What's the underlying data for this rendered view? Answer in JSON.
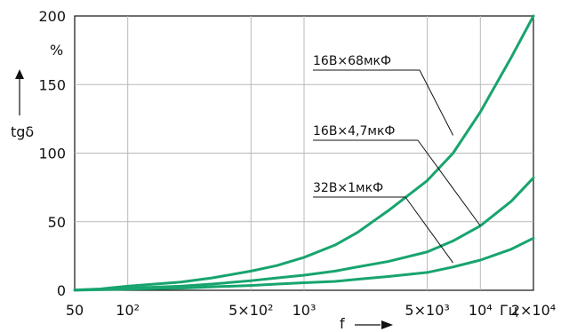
{
  "chart_data": {
    "type": "line",
    "scale": {
      "x": "log",
      "y": "linear"
    },
    "xlim": [
      50,
      20000
    ],
    "ylim": [
      0,
      200
    ],
    "grid": true,
    "x_ticks": [
      {
        "value": 50,
        "label": "50"
      },
      {
        "value": 100,
        "label": "10²"
      },
      {
        "value": 500,
        "label": "5×10²"
      },
      {
        "value": 1000,
        "label": "10³"
      },
      {
        "value": 5000,
        "label": "5×10³"
      },
      {
        "value": 10000,
        "label": "10⁴"
      },
      {
        "value": 20000,
        "label": "2×10⁴"
      }
    ],
    "y_ticks": [
      {
        "value": 0,
        "label": "0"
      },
      {
        "value": 50,
        "label": "50"
      },
      {
        "value": 100,
        "label": "100"
      },
      {
        "value": 150,
        "label": "150"
      },
      {
        "value": 200,
        "label": "200"
      }
    ],
    "xlabel": "f",
    "ylabel": "tgδ",
    "y_unit": "%",
    "x_unit": "Гц",
    "series": [
      {
        "name": "16В×68мкФ",
        "color": "#18a46e",
        "points": [
          {
            "x": 50,
            "y": 0.2
          },
          {
            "x": 70,
            "y": 1
          },
          {
            "x": 100,
            "y": 3
          },
          {
            "x": 200,
            "y": 6
          },
          {
            "x": 300,
            "y": 9
          },
          {
            "x": 500,
            "y": 14
          },
          {
            "x": 700,
            "y": 18
          },
          {
            "x": 1000,
            "y": 24
          },
          {
            "x": 1500,
            "y": 33
          },
          {
            "x": 2000,
            "y": 42
          },
          {
            "x": 3000,
            "y": 58
          },
          {
            "x": 5000,
            "y": 80
          },
          {
            "x": 7000,
            "y": 100
          },
          {
            "x": 10000,
            "y": 130
          },
          {
            "x": 15000,
            "y": 170
          },
          {
            "x": 20000,
            "y": 200
          }
        ]
      },
      {
        "name": "16В×4,7мкФ",
        "color": "#18a46e",
        "points": [
          {
            "x": 50,
            "y": 0.2
          },
          {
            "x": 100,
            "y": 1.5
          },
          {
            "x": 200,
            "y": 3
          },
          {
            "x": 300,
            "y": 4.5
          },
          {
            "x": 500,
            "y": 7
          },
          {
            "x": 700,
            "y": 9
          },
          {
            "x": 1000,
            "y": 11
          },
          {
            "x": 1500,
            "y": 14
          },
          {
            "x": 2000,
            "y": 17
          },
          {
            "x": 3000,
            "y": 21
          },
          {
            "x": 5000,
            "y": 28
          },
          {
            "x": 7000,
            "y": 36
          },
          {
            "x": 10000,
            "y": 47
          },
          {
            "x": 15000,
            "y": 65
          },
          {
            "x": 20000,
            "y": 82
          }
        ]
      },
      {
        "name": "32В×1мкФ",
        "color": "#18a46e",
        "points": [
          {
            "x": 50,
            "y": 0.1
          },
          {
            "x": 100,
            "y": 0.8
          },
          {
            "x": 200,
            "y": 1.5
          },
          {
            "x": 300,
            "y": 2.5
          },
          {
            "x": 500,
            "y": 3.5
          },
          {
            "x": 700,
            "y": 4.5
          },
          {
            "x": 1000,
            "y": 5.5
          },
          {
            "x": 1500,
            "y": 6.5
          },
          {
            "x": 2000,
            "y": 8
          },
          {
            "x": 3000,
            "y": 10
          },
          {
            "x": 5000,
            "y": 13
          },
          {
            "x": 7000,
            "y": 17
          },
          {
            "x": 10000,
            "y": 22
          },
          {
            "x": 15000,
            "y": 30
          },
          {
            "x": 20000,
            "y": 38
          }
        ]
      }
    ],
    "annotations": [
      {
        "series": "16В×68мкФ",
        "target_x": 7000,
        "target_y": 113
      },
      {
        "series": "16В×4,7мкФ",
        "target_x": 10000,
        "target_y": 47
      },
      {
        "series": "32В×1мкФ",
        "target_x": 7000,
        "target_y": 20
      }
    ]
  }
}
